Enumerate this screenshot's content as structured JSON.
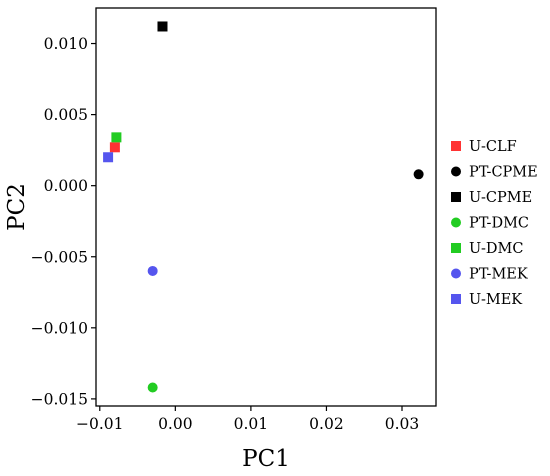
{
  "chart_data": {
    "type": "scatter",
    "title": "",
    "xlabel": "PC1",
    "ylabel": "PC2",
    "xlim": [
      -0.0105,
      0.0345
    ],
    "ylim": [
      -0.0155,
      0.0125
    ],
    "x_ticks": [
      -0.01,
      0.0,
      0.01,
      0.02,
      0.03
    ],
    "x_tick_labels": [
      "−0.01",
      "0.00",
      "0.01",
      "0.02",
      "0.03"
    ],
    "y_ticks": [
      -0.015,
      -0.01,
      -0.005,
      0.0,
      0.005,
      0.01
    ],
    "y_tick_labels": [
      "−0.015",
      "−0.010",
      "−0.005",
      "0.000",
      "0.005",
      "0.010"
    ],
    "grid": false,
    "legend_position": "right",
    "series": [
      {
        "name": "U-CLF",
        "color": "#ff3333",
        "marker": "square",
        "x": -0.008,
        "y": 0.0027
      },
      {
        "name": "PT-CPME",
        "color": "#000000",
        "marker": "circle",
        "x": 0.0322,
        "y": 0.0008
      },
      {
        "name": "U-CPME",
        "color": "#000000",
        "marker": "square",
        "x": -0.0017,
        "y": 0.0112
      },
      {
        "name": "PT-DMC",
        "color": "#22cc22",
        "marker": "circle",
        "x": -0.003,
        "y": -0.0142
      },
      {
        "name": "U-DMC",
        "color": "#22cc22",
        "marker": "square",
        "x": -0.0078,
        "y": 0.0034
      },
      {
        "name": "PT-MEK",
        "color": "#5555ee",
        "marker": "circle",
        "x": -0.003,
        "y": -0.006
      },
      {
        "name": "U-MEK",
        "color": "#5555ee",
        "marker": "square",
        "x": -0.0089,
        "y": 0.002
      }
    ]
  }
}
